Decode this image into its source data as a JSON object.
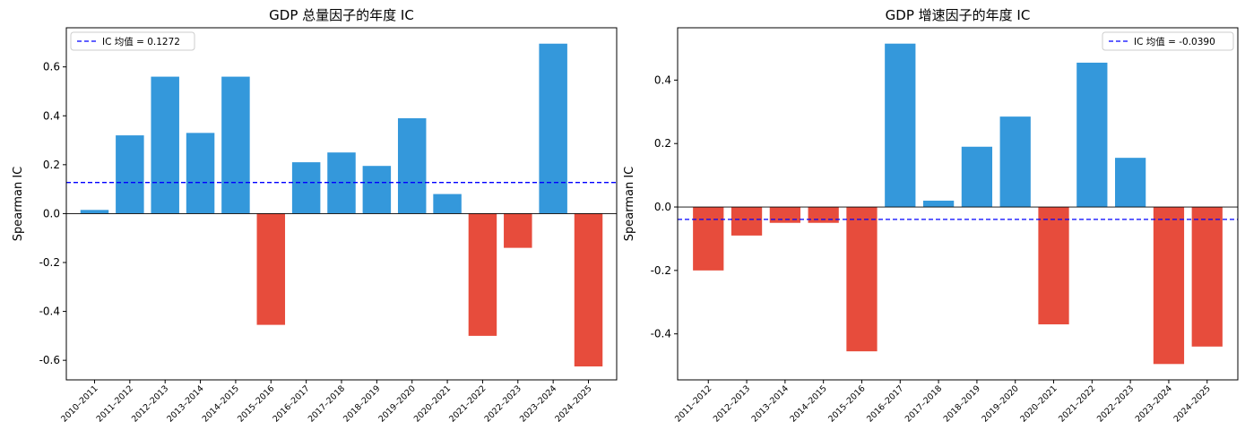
{
  "chart_data": [
    {
      "type": "bar",
      "title": "GDP 总量因子的年度 IC",
      "xlabel": "",
      "ylabel": "Spearman IC",
      "ylim": [
        -0.68,
        0.76
      ],
      "yticks": [
        -0.6,
        -0.4,
        -0.2,
        0.0,
        0.2,
        0.4,
        0.6
      ],
      "ytick_labels": [
        "-0.6",
        "-0.4",
        "-0.2",
        "0.0",
        "0.2",
        "0.4",
        "0.6"
      ],
      "categories": [
        "2010–2011",
        "2011–2012",
        "2012–2013",
        "2013–2014",
        "2014–2015",
        "2015–2016",
        "2016–2017",
        "2017–2018",
        "2018–2019",
        "2019–2020",
        "2020–2021",
        "2021–2022",
        "2022–2023",
        "2023–2024",
        "2024–2025"
      ],
      "values": [
        0.015,
        0.32,
        0.56,
        0.33,
        0.56,
        -0.455,
        0.21,
        0.25,
        0.195,
        0.39,
        0.08,
        -0.5,
        -0.14,
        0.695,
        -0.625
      ],
      "mean_line": 0.1272,
      "legend": {
        "label": "IC 均值 = 0.1272",
        "placement": "upper left"
      },
      "colors": {
        "positive": "#3498db",
        "negative": "#e74c3c",
        "mean": "#0000ff"
      }
    },
    {
      "type": "bar",
      "title": "GDP 增速因子的年度 IC",
      "xlabel": "",
      "ylabel": "Spearman IC",
      "ylim": [
        -0.545,
        0.565
      ],
      "yticks": [
        -0.4,
        -0.2,
        0.0,
        0.2,
        0.4
      ],
      "ytick_labels": [
        "-0.4",
        "-0.2",
        "0.0",
        "0.2",
        "0.4"
      ],
      "categories": [
        "2011–2012",
        "2012–2013",
        "2013–2014",
        "2014–2015",
        "2015–2016",
        "2016–2017",
        "2017–2018",
        "2018–2019",
        "2019–2020",
        "2020–2021",
        "2021–2022",
        "2022–2023",
        "2023–2024",
        "2024–2025"
      ],
      "values": [
        -0.2,
        -0.09,
        -0.05,
        -0.05,
        -0.455,
        0.515,
        0.02,
        0.19,
        0.285,
        -0.37,
        0.455,
        0.155,
        -0.495,
        -0.44
      ],
      "mean_line": -0.039,
      "legend": {
        "label": "IC 均值 = -0.0390",
        "placement": "upper right"
      },
      "colors": {
        "positive": "#3498db",
        "negative": "#e74c3c",
        "mean": "#0000ff"
      }
    }
  ]
}
